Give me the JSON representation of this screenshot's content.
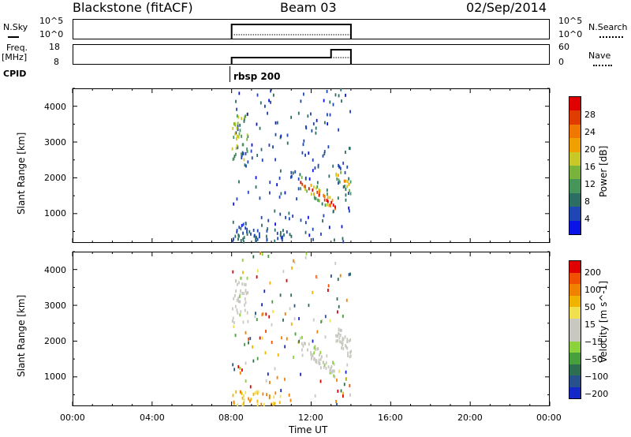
{
  "header": {
    "station": "Blackstone (fitACF)",
    "beam": "Beam 03",
    "date": "02/Sep/2014"
  },
  "status_panels": {
    "nsky_label": "N.Sky",
    "nsearch_label": "N.Search",
    "freq_label": "Freq.",
    "freq_unit": "[MHz]",
    "nave_label": "Nave",
    "cpid_label": "CPID",
    "cpid_value": "rbsp 200",
    "nsky_ticks_left": [
      "10^5",
      "10^0"
    ],
    "nsky_ticks_right": [
      "10^5",
      "10^0"
    ],
    "freq_ticks_left": [
      "18",
      "8"
    ],
    "freq_ticks_right": [
      "60",
      "0"
    ]
  },
  "colors": {
    "axis": "#000000",
    "empty": "#ffffff"
  },
  "chart_data": [
    {
      "type": "heatmap",
      "title": "",
      "xlabel": "Time UT",
      "ylabel": "Slant Range [km]",
      "xlim_hours": [
        0,
        24
      ],
      "ylim_km": [
        180,
        4500
      ],
      "x_tick_labels": [
        "00:00",
        "04:00",
        "08:00",
        "12:00",
        "16:00",
        "20:00",
        "00:00"
      ],
      "y_tick_labels": [
        "1000",
        "2000",
        "3000",
        "4000"
      ],
      "colorbar_label": "Power [dB]",
      "colorbar_ticks": [
        "4",
        "8",
        "12",
        "16",
        "20",
        "24",
        "28"
      ],
      "colorbar_colors": [
        "#0a14e6",
        "#1e46b4",
        "#2d6e64",
        "#46965a",
        "#78b43c",
        "#c8c828",
        "#f0a000",
        "#f07800",
        "#e03c00",
        "#e00000"
      ],
      "data_window_hours": [
        8.0,
        14.0
      ],
      "features": [
        {
          "name": "near-range band",
          "t_start": 8.0,
          "t_end": 11.0,
          "range_km": [
            200,
            600
          ],
          "power_db": 6
        },
        {
          "name": "patch 3000km",
          "t_start": 8.0,
          "t_end": 8.7,
          "range_km": [
            2500,
            3800
          ],
          "power_db": 10
        },
        {
          "name": "descending echo",
          "t_start": 11.5,
          "t_end": 13.2,
          "range_km_start": 1900,
          "range_km_end": 1200,
          "power_db": 24
        },
        {
          "name": "late echo",
          "t_start": 13.0,
          "t_end": 14.0,
          "range_km_start": 2300,
          "range_km_end": 1600,
          "power_db": 18
        }
      ]
    },
    {
      "type": "heatmap",
      "title": "",
      "xlabel": "Time UT",
      "ylabel": "Slant Range [km]",
      "xlim_hours": [
        0,
        24
      ],
      "ylim_km": [
        180,
        4500
      ],
      "x_tick_labels": [
        "00:00",
        "04:00",
        "08:00",
        "12:00",
        "16:00",
        "20:00",
        "00:00"
      ],
      "y_tick_labels": [
        "1000",
        "2000",
        "3000",
        "4000"
      ],
      "colorbar_label": "Velocity [m s^-1]",
      "colorbar_ticks": [
        "200",
        "100",
        "50",
        "15",
        "−15",
        "−50",
        "−100",
        "−200"
      ],
      "colorbar_colors": [
        "#1428c8",
        "#28508c",
        "#2d6e50",
        "#46a03c",
        "#8cd23c",
        "#c8c8c0",
        "#c8c8c0",
        "#f0e050",
        "#f0b400",
        "#f08200",
        "#f05000",
        "#e00000"
      ],
      "data_window_hours": [
        8.0,
        14.0
      ]
    }
  ]
}
